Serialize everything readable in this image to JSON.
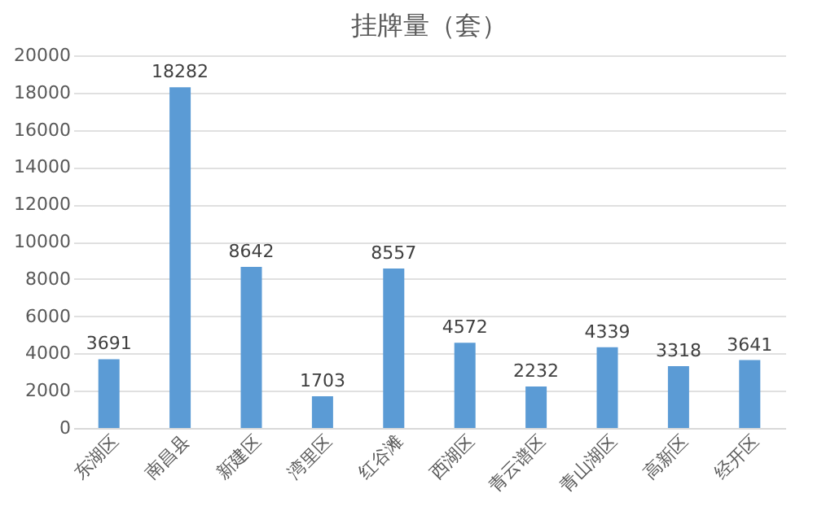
{
  "chart_data": {
    "type": "bar",
    "title": "挂牌量（套）",
    "categories": [
      "东湖区",
      "南昌县",
      "新建区",
      "湾里区",
      "红谷滩",
      "西湖区",
      "青云谱区",
      "青山湖区",
      "高新区",
      "经开区"
    ],
    "values": [
      3691,
      18282,
      8642,
      1703,
      8557,
      4572,
      2232,
      4339,
      3318,
      3641
    ],
    "color": "#5b9bd5",
    "ylim": [
      0,
      20000
    ],
    "yticks": [
      0,
      2000,
      4000,
      6000,
      8000,
      10000,
      12000,
      14000,
      16000,
      18000,
      20000
    ],
    "grid": "y",
    "data_labels": true
  }
}
